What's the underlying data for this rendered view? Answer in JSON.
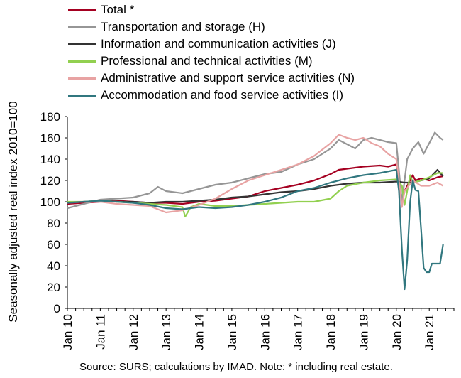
{
  "chart_data": {
    "type": "line",
    "ylabel": "Seasonally adjusted real index 2010=100",
    "xlabel": "",
    "ylim": [
      0,
      180
    ],
    "yticks": [
      "0",
      "20",
      "40",
      "60",
      "80",
      "100",
      "120",
      "140",
      "160",
      "180"
    ],
    "xlim": [
      2010,
      2021.75
    ],
    "xtick_labels": [
      "Jan 10",
      "Jan 11",
      "Jan 12",
      "Jan 13",
      "Jan 14",
      "Jan 15",
      "Jan 16",
      "Jan 17",
      "Jan 18",
      "Jan 19",
      "Jan 20",
      "Jan 21"
    ],
    "xticks": [
      2010,
      2011,
      2012,
      2013,
      2014,
      2015,
      2016,
      2017,
      2018,
      2019,
      2020,
      2021
    ],
    "grid": "none",
    "legend_position": "top",
    "source_note": "Source:  SURS; calculations by IMAD. Note: * including real estate.",
    "series": [
      {
        "name": "Total *",
        "color": "#a50021",
        "x": [
          2010,
          2010.5,
          2011,
          2011.5,
          2012,
          2012.5,
          2013,
          2013.5,
          2014,
          2014.5,
          2015,
          2015.5,
          2016,
          2016.5,
          2017,
          2017.5,
          2018,
          2018.25,
          2018.5,
          2018.75,
          2019,
          2019.5,
          2019.75,
          2020,
          2020.17,
          2020.25,
          2020.33,
          2020.5,
          2020.58,
          2020.75,
          2021,
          2021.25,
          2021.42
        ],
        "y": [
          98,
          99,
          100,
          101,
          100,
          99,
          99,
          98,
          100,
          101,
          103,
          105,
          110,
          113,
          116,
          120,
          126,
          130,
          131,
          132,
          133,
          134,
          133,
          135,
          100,
          110,
          115,
          125,
          120,
          122,
          120,
          123,
          124
        ]
      },
      {
        "name": "Transportation and storage (H)",
        "color": "#969696",
        "x": [
          2010,
          2010.5,
          2011,
          2011.5,
          2012,
          2012.5,
          2012.75,
          2013,
          2013.5,
          2014,
          2014.5,
          2015,
          2015.5,
          2016,
          2016.5,
          2017,
          2017.5,
          2018,
          2018.25,
          2018.5,
          2018.75,
          2019,
          2019.25,
          2019.5,
          2019.75,
          2020,
          2020.17,
          2020.25,
          2020.33,
          2020.5,
          2020.67,
          2020.83,
          2021,
          2021.17,
          2021.33,
          2021.42
        ],
        "y": [
          94,
          98,
          102,
          103,
          104,
          108,
          114,
          110,
          108,
          112,
          116,
          118,
          122,
          126,
          128,
          135,
          140,
          150,
          158,
          154,
          150,
          158,
          160,
          158,
          156,
          155,
          100,
          120,
          140,
          150,
          156,
          145,
          155,
          165,
          160,
          158
        ]
      },
      {
        "name": "Information and communication activities (J)",
        "color": "#333333",
        "x": [
          2010,
          2010.5,
          2011,
          2011.5,
          2012,
          2012.5,
          2013,
          2013.5,
          2014,
          2014.5,
          2015,
          2015.5,
          2016,
          2016.5,
          2017,
          2017.5,
          2018,
          2018.5,
          2019,
          2019.5,
          2020,
          2020.25,
          2020.5,
          2020.75,
          2021,
          2021.25,
          2021.42
        ],
        "y": [
          99,
          100,
          101,
          100,
          100,
          99,
          100,
          100,
          101,
          102,
          104,
          105,
          107,
          109,
          110,
          112,
          115,
          117,
          118,
          118,
          119,
          118,
          118,
          120,
          122,
          130,
          124
        ]
      },
      {
        "name": "Professional and technical activities (M)",
        "color": "#92d050",
        "x": [
          2010,
          2010.5,
          2011,
          2011.5,
          2012,
          2012.5,
          2013,
          2013.5,
          2013.58,
          2013.75,
          2014,
          2014.5,
          2015,
          2015.5,
          2016,
          2016.5,
          2017,
          2017.5,
          2018,
          2018.25,
          2018.5,
          2019,
          2019.5,
          2020,
          2020.17,
          2020.25,
          2020.42,
          2020.5,
          2020.75,
          2021,
          2021.25,
          2021.42
        ],
        "y": [
          100,
          100,
          101,
          100,
          99,
          98,
          97,
          95,
          86,
          95,
          98,
          96,
          96,
          97,
          98,
          99,
          100,
          100,
          103,
          110,
          115,
          118,
          120,
          121,
          115,
          97,
          125,
          118,
          120,
          123,
          127,
          127
        ]
      },
      {
        "name": "Administrative and support service activities (N)",
        "color": "#e8a3a3",
        "x": [
          2010,
          2010.5,
          2011,
          2011.5,
          2012,
          2012.5,
          2013,
          2013.5,
          2014,
          2014.5,
          2015,
          2015.5,
          2016,
          2016.5,
          2017,
          2017.5,
          2018,
          2018.25,
          2018.5,
          2018.75,
          2019,
          2019.25,
          2019.5,
          2019.75,
          2020,
          2020.17,
          2020.25,
          2020.5,
          2020.75,
          2021,
          2021.25,
          2021.42
        ],
        "y": [
          99,
          100,
          100,
          98,
          97,
          96,
          90,
          92,
          97,
          103,
          112,
          120,
          125,
          130,
          135,
          143,
          155,
          163,
          160,
          158,
          160,
          155,
          152,
          145,
          140,
          95,
          110,
          120,
          115,
          115,
          118,
          115
        ]
      },
      {
        "name": "Accommodation and food service activities (I)",
        "color": "#31777f",
        "x": [
          2010,
          2010.5,
          2011,
          2011.5,
          2012,
          2012.5,
          2013,
          2013.5,
          2014,
          2014.5,
          2015,
          2015.5,
          2016,
          2016.5,
          2017,
          2017.5,
          2018,
          2018.5,
          2019,
          2019.5,
          2020,
          2020.08,
          2020.17,
          2020.25,
          2020.33,
          2020.42,
          2020.5,
          2020.58,
          2020.67,
          2020.75,
          2020.83,
          2020.92,
          2021,
          2021.08,
          2021.17,
          2021.25,
          2021.33,
          2021.42
        ],
        "y": [
          99,
          100,
          101,
          100,
          99,
          97,
          94,
          93,
          95,
          94,
          95,
          97,
          100,
          104,
          110,
          113,
          118,
          122,
          125,
          127,
          130,
          110,
          55,
          18,
          45,
          100,
          120,
          111,
          110,
          75,
          38,
          34,
          34,
          42,
          42,
          42,
          42,
          60
        ]
      }
    ]
  }
}
